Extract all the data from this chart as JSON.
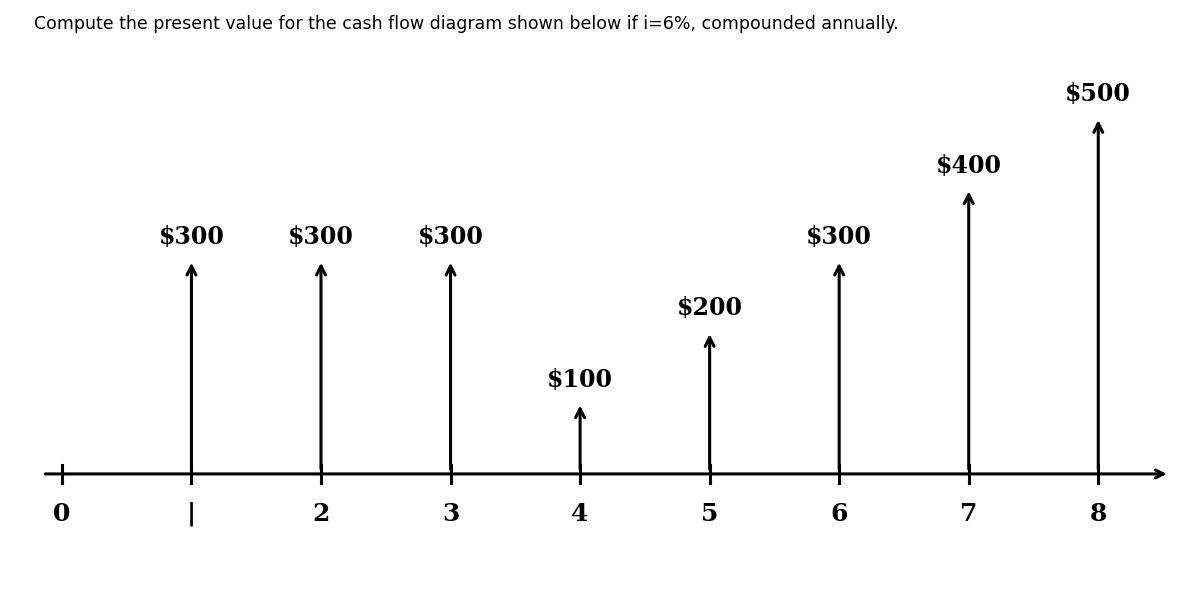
{
  "title": "Compute the present value for the cash flow diagram shown below if i=6%, compounded annually.",
  "periods": [
    0,
    1,
    2,
    3,
    4,
    5,
    6,
    7,
    8
  ],
  "cash_flows": {
    "1": 300,
    "2": 300,
    "3": 300,
    "4": 100,
    "5": 200,
    "6": 300,
    "7": 400,
    "8": 500
  },
  "tick_labels": [
    "0",
    "|",
    "2",
    "3",
    "4",
    "5",
    "6",
    "7",
    "8"
  ],
  "x_min": -0.2,
  "x_max": 8.6,
  "y_min": -0.15,
  "y_max": 550,
  "timeline_y": 0,
  "arrow_color": "#000000",
  "background_color": "#ffffff",
  "title_fontsize": 12.5,
  "label_fontsize": 17,
  "tick_fontsize": 18,
  "axis_linewidth": 2.2,
  "arrow_linewidth": 2.2,
  "figsize": [
    12.0,
    6.13
  ],
  "scale": 0.9
}
